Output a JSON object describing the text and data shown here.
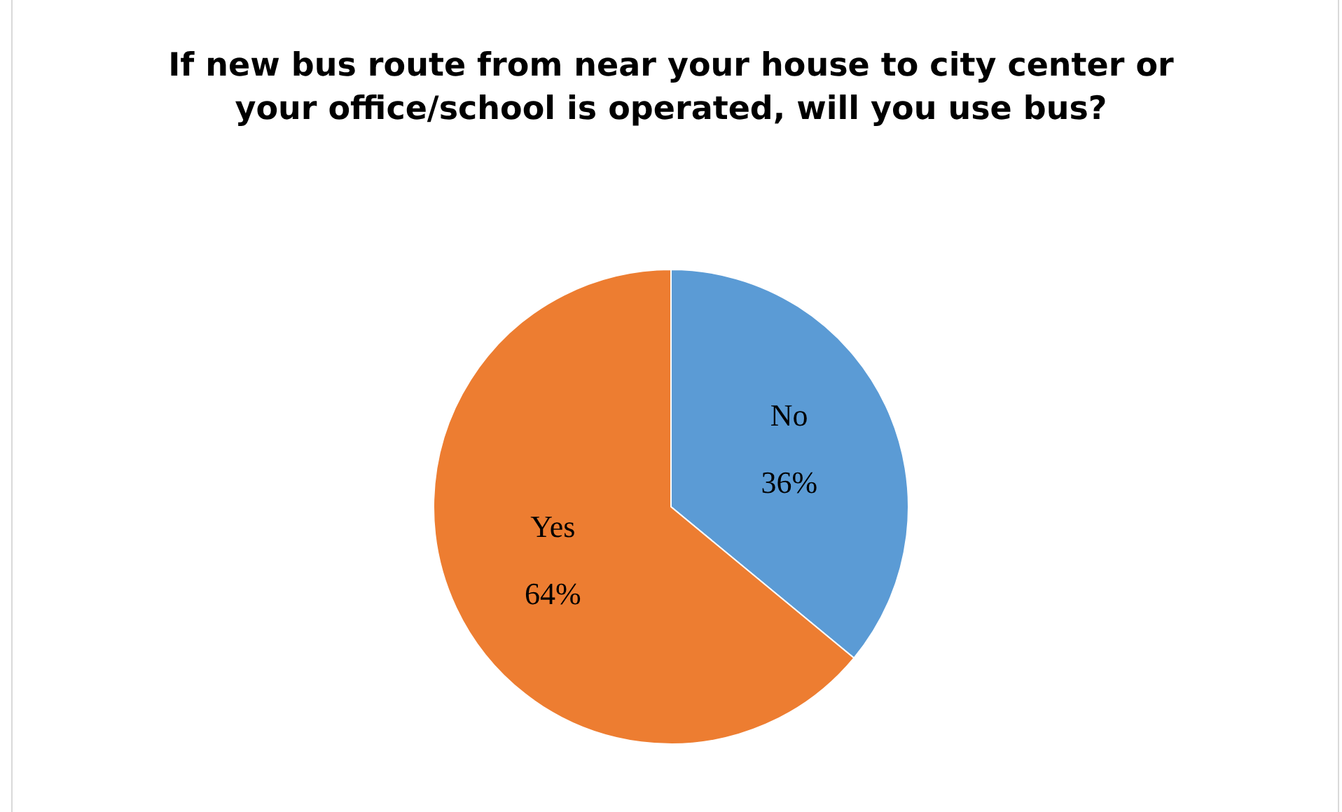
{
  "chart_data": {
    "type": "pie",
    "title": "If new bus route from near your house to city center or your office/school is operated, will you use bus?",
    "categories": [
      "No",
      "Yes"
    ],
    "values": [
      36,
      64
    ],
    "colors": [
      "#5b9bd5",
      "#ed7d31"
    ],
    "value_labels": [
      "36%",
      "64%"
    ],
    "legend": false
  }
}
